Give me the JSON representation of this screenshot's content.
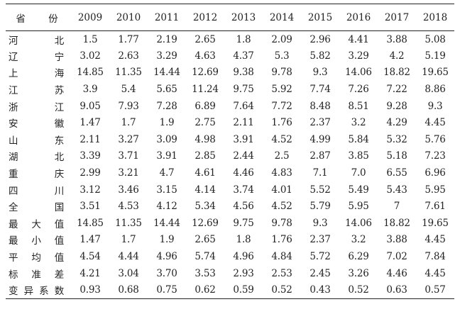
{
  "table": {
    "header": {
      "province": "省 份",
      "years": [
        "2009",
        "2010",
        "2011",
        "2012",
        "2013",
        "2014",
        "2015",
        "2016",
        "2017",
        "2018"
      ]
    },
    "rows": [
      {
        "label": "河北",
        "values": [
          "1.5",
          "1.77",
          "2.19",
          "2.65",
          "1.8",
          "2.09",
          "2.96",
          "4.41",
          "3.88",
          "5.08"
        ]
      },
      {
        "label": "辽宁",
        "values": [
          "3.02",
          "2.63",
          "3.29",
          "4.63",
          "4.37",
          "5.3",
          "5.82",
          "3.29",
          "4.2",
          "5.19"
        ]
      },
      {
        "label": "上海",
        "values": [
          "14.85",
          "11.35",
          "14.44",
          "12.69",
          "9.38",
          "9.78",
          "9.3",
          "14.06",
          "18.82",
          "19.65"
        ]
      },
      {
        "label": "江苏",
        "values": [
          "3.9",
          "5.4",
          "5.65",
          "11.24",
          "9.75",
          "5.92",
          "7.74",
          "7.26",
          "7.22",
          "8.86"
        ]
      },
      {
        "label": "浙江",
        "values": [
          "9.05",
          "7.93",
          "7.28",
          "6.89",
          "7.64",
          "7.72",
          "8.48",
          "8.51",
          "9.28",
          "9.3"
        ]
      },
      {
        "label": "安徽",
        "values": [
          "1.47",
          "1.7",
          "1.9",
          "2.75",
          "2.11",
          "1.76",
          "2.37",
          "3.2",
          "4.29",
          "4.45"
        ]
      },
      {
        "label": "山东",
        "values": [
          "2.11",
          "3.27",
          "3.09",
          "4.98",
          "3.91",
          "4.52",
          "4.99",
          "5.84",
          "5.32",
          "5.76"
        ]
      },
      {
        "label": "湖北",
        "values": [
          "3.39",
          "3.71",
          "3.91",
          "2.85",
          "2.44",
          "2.5",
          "2.87",
          "3.85",
          "5.18",
          "7.23"
        ]
      },
      {
        "label": "重庆",
        "values": [
          "2.99",
          "3.21",
          "4.7",
          "4.61",
          "4.46",
          "4.83",
          "7.1",
          "7.0",
          "6.55",
          "6.96"
        ]
      },
      {
        "label": "四川",
        "values": [
          "3.12",
          "3.46",
          "3.15",
          "4.14",
          "3.74",
          "4.01",
          "5.52",
          "5.49",
          "5.43",
          "5.95"
        ]
      },
      {
        "label": "全国",
        "values": [
          "3.51",
          "4.53",
          "4.12",
          "5.34",
          "4.56",
          "4.52",
          "5.79",
          "5.95",
          "7",
          "7.61"
        ]
      },
      {
        "label": "最大值",
        "values": [
          "14.85",
          "11.35",
          "14.44",
          "12.69",
          "9.75",
          "9.78",
          "9.3",
          "14.06",
          "18.82",
          "19.65"
        ]
      },
      {
        "label": "最小值",
        "values": [
          "1.47",
          "1.7",
          "1.9",
          "2.65",
          "1.8",
          "1.76",
          "2.37",
          "3.2",
          "3.88",
          "4.45"
        ]
      },
      {
        "label": "平均值",
        "values": [
          "4.54",
          "4.44",
          "4.96",
          "5.74",
          "4.96",
          "4.84",
          "5.72",
          "6.29",
          "7.02",
          "7.84"
        ]
      },
      {
        "label": "标准差",
        "values": [
          "4.21",
          "3.04",
          "3.70",
          "3.53",
          "2.93",
          "2.53",
          "2.45",
          "3.26",
          "4.46",
          "4.45"
        ]
      },
      {
        "label": "变异系数",
        "values": [
          "0.93",
          "0.68",
          "0.75",
          "0.62",
          "0.59",
          "0.52",
          "0.43",
          "0.52",
          "0.63",
          "0.57"
        ]
      }
    ]
  }
}
